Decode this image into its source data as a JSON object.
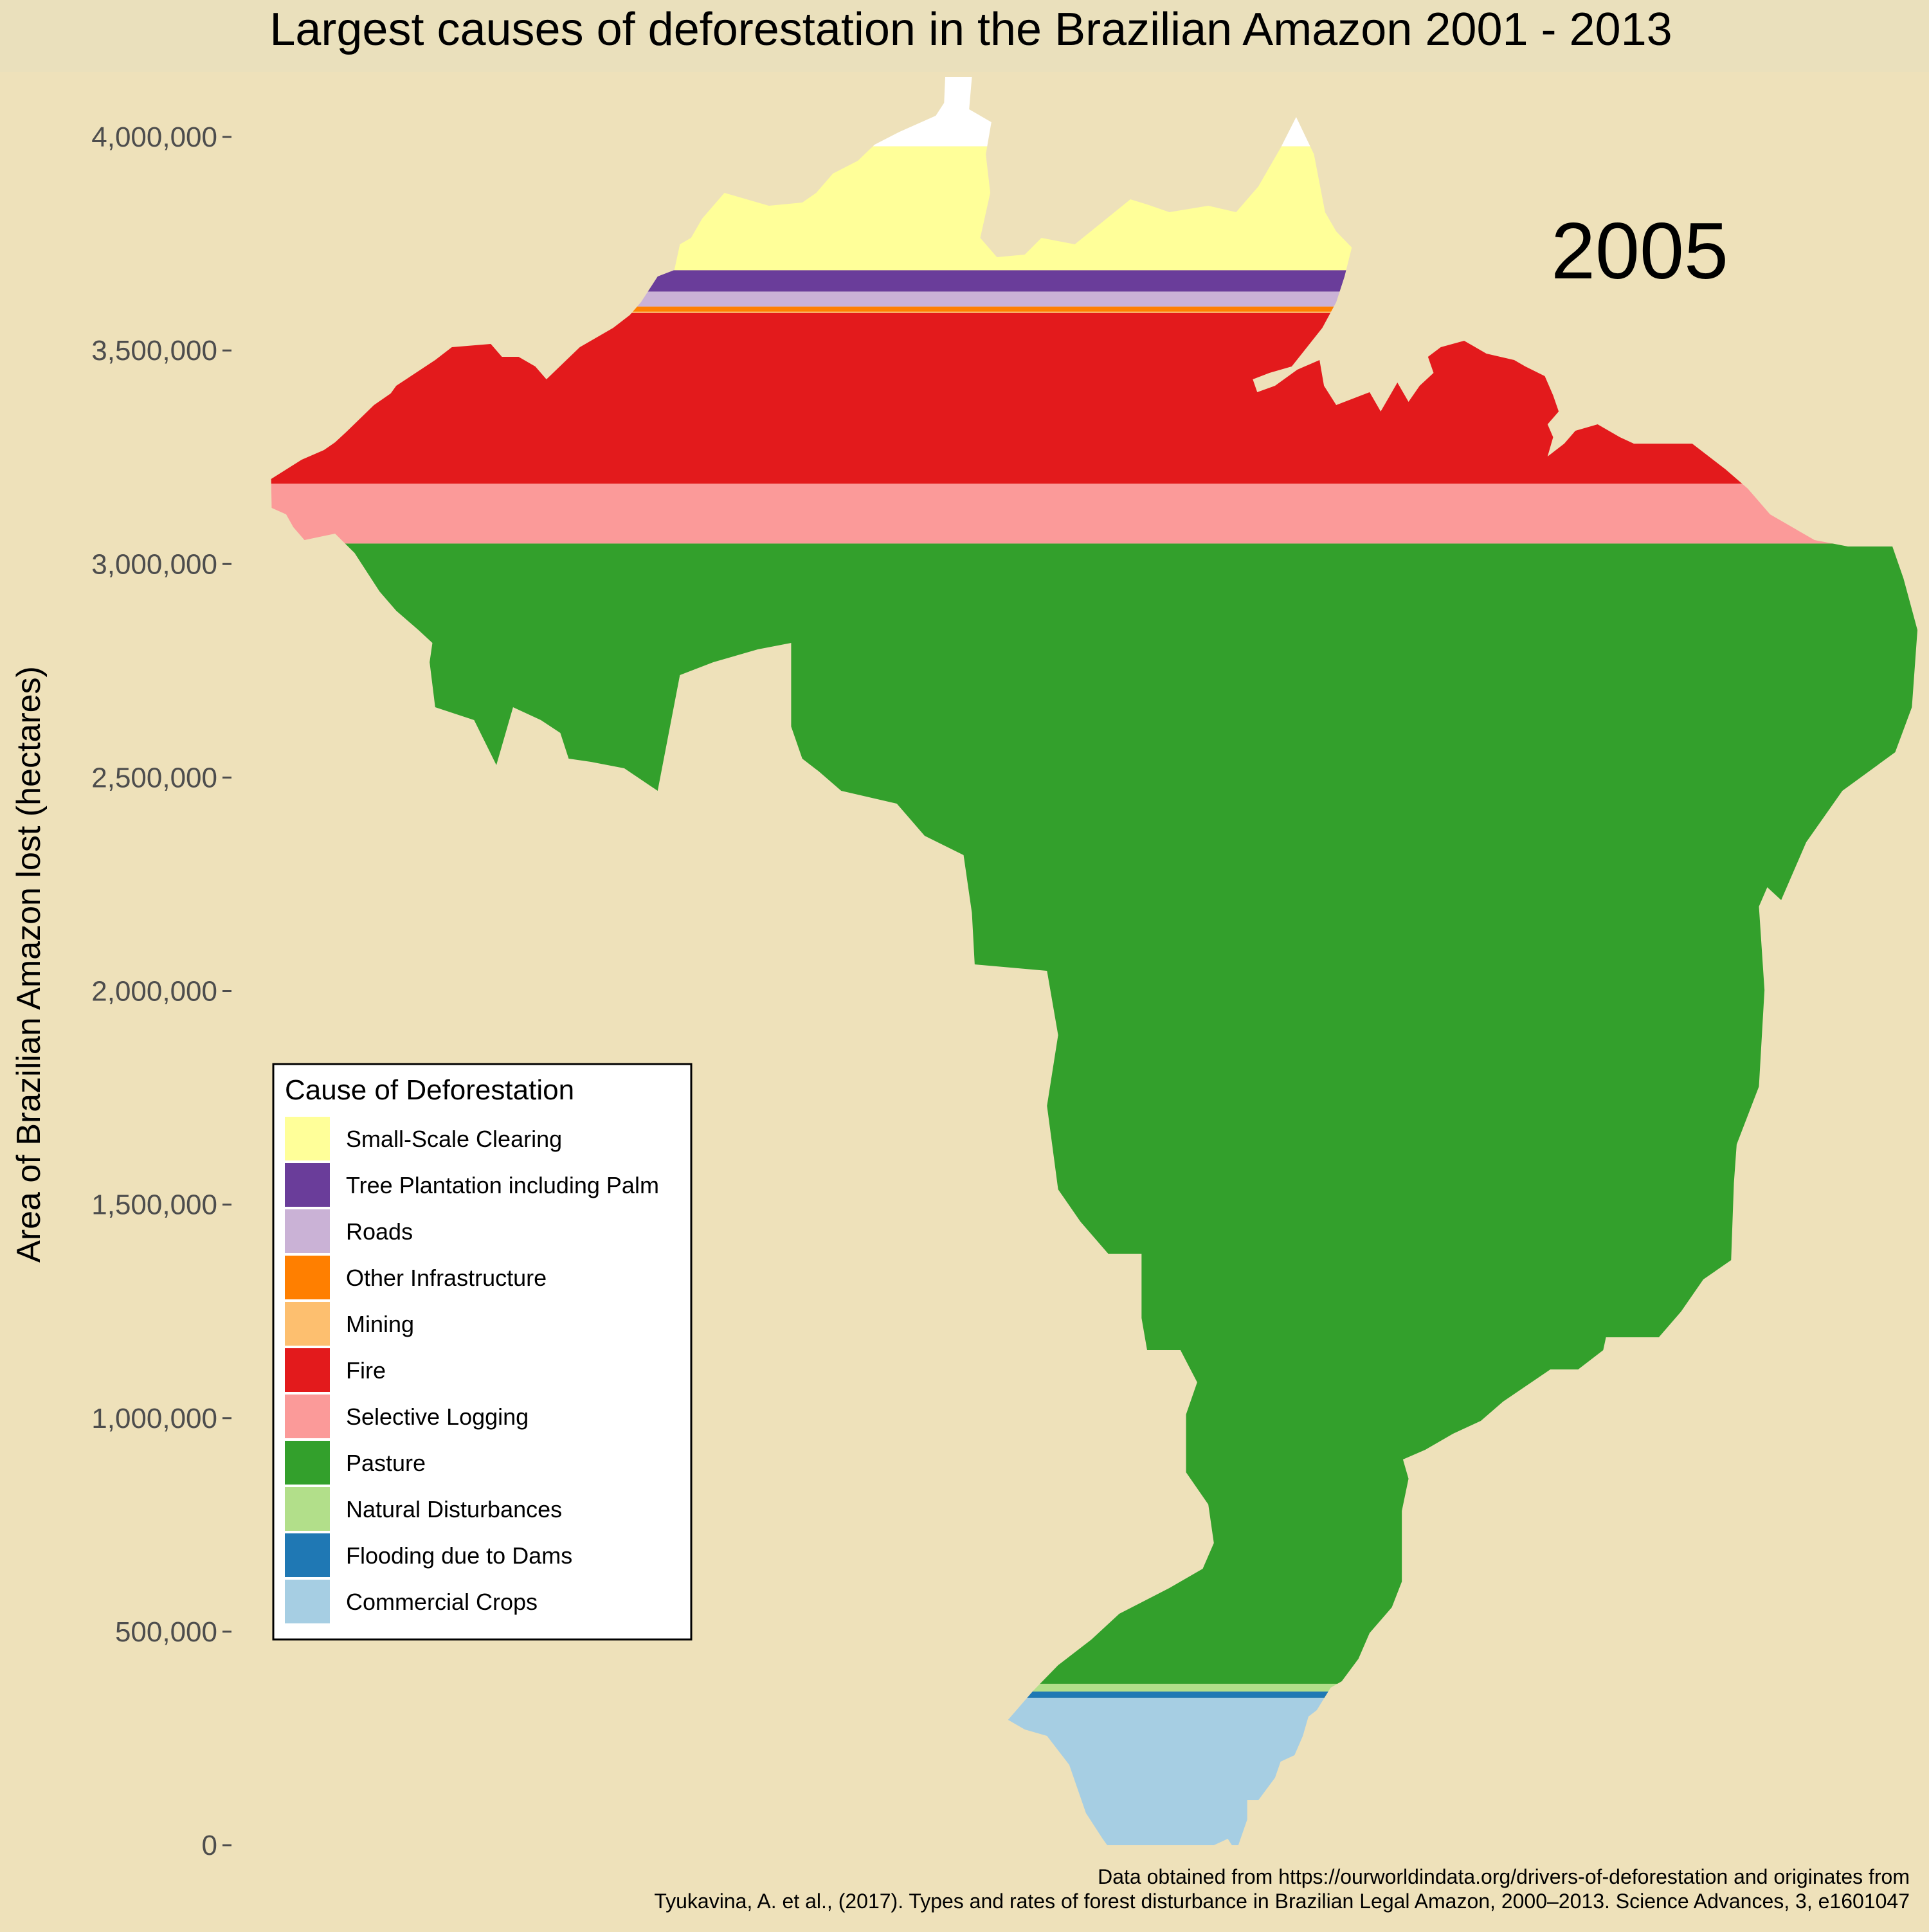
{
  "colors": {
    "background": "#EEE1BA",
    "text": "#000000",
    "axis_text": "#4D4D4D"
  },
  "chart_data": {
    "type": "area",
    "title": "Largest causes of deforestation in the Brazilian Amazon 2001 - 2013",
    "ylabel": "Area of Brazilian Amazon lost (hectares)",
    "xlabel": "",
    "year_label": "2005",
    "ylim": [
      0,
      4000000
    ],
    "y_ticks": [
      0,
      500000,
      1000000,
      1500000,
      2000000,
      2500000,
      3000000,
      3500000,
      4000000
    ],
    "y_tick_labels": [
      "0",
      "500,000",
      "1,000,000",
      "1,500,000",
      "2,000,000",
      "2,500,000",
      "3,000,000",
      "3,500,000",
      "4,000,000"
    ],
    "grid": false,
    "legend_position": "bottom-left",
    "legend_title": "Cause of Deforestation",
    "series": [
      {
        "name": "Small-Scale Clearing",
        "color": "#FFFF99",
        "value": 290000
      },
      {
        "name": "Tree Plantation including Palm",
        "color": "#6A3D9A",
        "value": 50000
      },
      {
        "name": "Roads",
        "color": "#CAB2D6",
        "value": 35000
      },
      {
        "name": "Other Infrastructure",
        "color": "#FF7F00",
        "value": 12000
      },
      {
        "name": "Mining",
        "color": "#FDBF6F",
        "value": 3000
      },
      {
        "name": "Fire",
        "color": "#E31A1C",
        "value": 400000
      },
      {
        "name": "Selective Logging",
        "color": "#FB9A99",
        "value": 140000
      },
      {
        "name": "Pasture",
        "color": "#33A02C",
        "value": 2670000
      },
      {
        "name": "Natural Disturbances",
        "color": "#B2DF8A",
        "value": 18000
      },
      {
        "name": "Flooding due to Dams",
        "color": "#1F78B4",
        "value": 15000
      },
      {
        "name": "Commercial Crops",
        "color": "#A6CEE3",
        "value": 345000
      }
    ],
    "caption_lines": [
      "Data obtained from https://ourworldindata.org/drivers-of-deforestation and originates from",
      "Tyukavina, A. et al., (2017). Types and rates of forest disturbance in Brazilian Legal Amazon, 2000–2013. Science Advances, 3, e1601047"
    ]
  }
}
